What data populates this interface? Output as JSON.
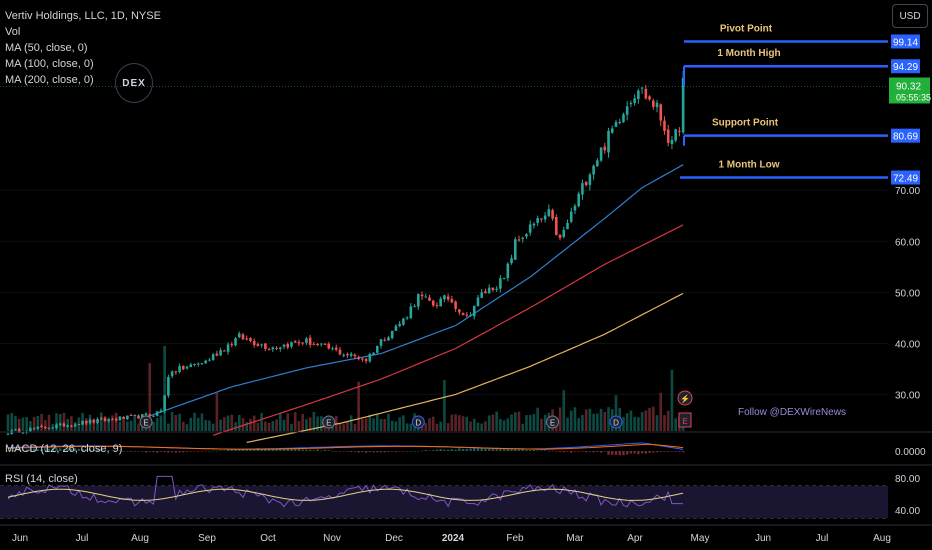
{
  "legend": {
    "title": "Vertiv Holdings, LLC, 1D, NYSE",
    "vol": "Vol",
    "ma50": "MA (50, close, 0)",
    "ma100": "MA (100, close, 0)",
    "ma200": "MA (200, close, 0)",
    "macd": "MACD (12, 26, close, 9)",
    "rsi": "RSI (14, close)"
  },
  "currency_button": "USD",
  "logo_text": "DEX",
  "follow_text": "Follow @DEXWireNews",
  "colors": {
    "up": "#26a69a",
    "down": "#ef5350",
    "ma50": "#2f7fd0",
    "ma100": "#d4373e",
    "ma200": "#e8b45c",
    "level": "#2962ff",
    "annot": "#e8c57a"
  },
  "chart_data": {
    "type": "candlestick",
    "x_tick_labels": [
      "Jun",
      "Jul",
      "Aug",
      "Sep",
      "Oct",
      "Nov",
      "Dec",
      "2024",
      "Feb",
      "Mar",
      "Apr",
      "May",
      "Jun",
      "Jul",
      "Aug"
    ],
    "y_ticks": [
      30,
      40,
      50,
      60,
      70
    ],
    "y_tick_labels": [
      "30.00",
      "40.00",
      "50.00",
      "60.00",
      "70.00"
    ],
    "ylim": [
      20.5,
      103.5
    ],
    "levels": [
      {
        "name": "Pivot Point",
        "value": 99.14,
        "label": "99.14"
      },
      {
        "name": "1 Month High",
        "value": 94.29,
        "label": "94.29"
      },
      {
        "name": "Support Point",
        "value": 80.69,
        "label": "80.69"
      },
      {
        "name": "1 Month Low",
        "value": 72.49,
        "label": "72.49"
      }
    ],
    "last_price": {
      "value": 90.32,
      "label": "90.32",
      "countdown": "05:55:35"
    },
    "close_anchors": [
      [
        0,
        22.6
      ],
      [
        20,
        24.5
      ],
      [
        38,
        25.9
      ],
      [
        41,
        26.8
      ],
      [
        43,
        33.4
      ],
      [
        44,
        34.5
      ],
      [
        53,
        36.5
      ],
      [
        62,
        41.3
      ],
      [
        70,
        39.2
      ],
      [
        80,
        40.4
      ],
      [
        90,
        38.0
      ],
      [
        96,
        36.8
      ],
      [
        100,
        40.5
      ],
      [
        106,
        44.6
      ],
      [
        110,
        49.2
      ],
      [
        114,
        47.7
      ],
      [
        118,
        48.9
      ],
      [
        123,
        45.2
      ],
      [
        127,
        49.6
      ],
      [
        133,
        52.5
      ],
      [
        136,
        59.6
      ],
      [
        140,
        62.6
      ],
      [
        145,
        65.3
      ],
      [
        148,
        60.1
      ],
      [
        156,
        74.0
      ],
      [
        160,
        79.0
      ],
      [
        165,
        86.0
      ],
      [
        169,
        90.3
      ],
      [
        174,
        86.0
      ],
      [
        178,
        78.5
      ],
      [
        180,
        83.0
      ],
      [
        181,
        92.0
      ]
    ],
    "ma50_anchors": [
      [
        38,
        25.8
      ],
      [
        60,
        31.5
      ],
      [
        80,
        35.2
      ],
      [
        100,
        38.0
      ],
      [
        120,
        43.5
      ],
      [
        140,
        53.0
      ],
      [
        160,
        64.5
      ],
      [
        170,
        70.5
      ],
      [
        181,
        75.0
      ]
    ],
    "ma100_anchors": [
      [
        55,
        22.0
      ],
      [
        80,
        28.0
      ],
      [
        100,
        33.0
      ],
      [
        120,
        39.0
      ],
      [
        140,
        47.0
      ],
      [
        160,
        55.5
      ],
      [
        181,
        63.2
      ]
    ],
    "ma200_anchors": [
      [
        64,
        20.6
      ],
      [
        90,
        24.5
      ],
      [
        120,
        30.0
      ],
      [
        140,
        35.5
      ],
      [
        160,
        41.8
      ],
      [
        181,
        49.8
      ]
    ],
    "volume_spikes": [
      [
        38,
        0.8
      ],
      [
        42,
        1.0
      ],
      [
        56,
        0.45
      ],
      [
        94,
        0.58
      ],
      [
        117,
        0.6
      ],
      [
        149,
        0.48
      ],
      [
        163,
        0.42
      ],
      [
        175,
        0.45
      ],
      [
        178,
        0.72
      ]
    ],
    "macd_range": [
      -2.5,
      3.5
    ],
    "macd_ticks": [
      0
    ],
    "macd_tick_labels": [
      "0.0000"
    ],
    "rsi_ticks": [
      40,
      80
    ],
    "rsi_tick_labels": [
      "40.00",
      "80.00"
    ],
    "rsi_bands": [
      30,
      70
    ]
  }
}
